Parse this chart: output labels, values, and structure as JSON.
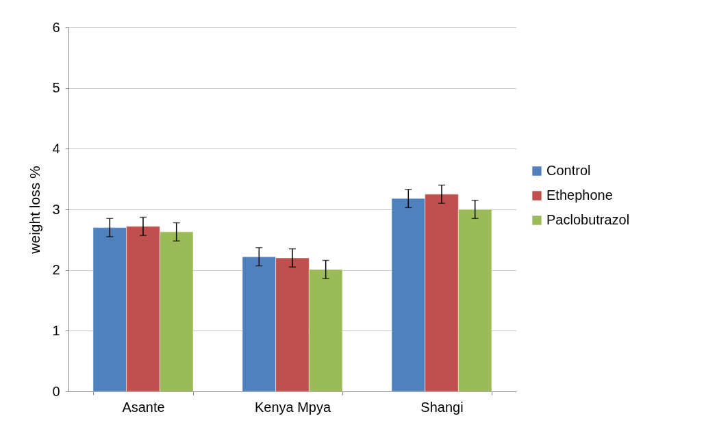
{
  "chart_data": {
    "type": "bar",
    "ylabel": "weight loss %",
    "categories": [
      "Asante",
      "Kenya Mpya",
      "Shangi"
    ],
    "series": [
      {
        "name": "Control",
        "color": "#4f81bd",
        "values": [
          2.7,
          2.22,
          3.18
        ],
        "errors": [
          0.15,
          0.15,
          0.15
        ]
      },
      {
        "name": "Ethephone",
        "color": "#c0504d",
        "values": [
          2.72,
          2.2,
          3.25
        ],
        "errors": [
          0.15,
          0.15,
          0.15
        ]
      },
      {
        "name": "Paclobutrazol",
        "color": "#9bbb59",
        "values": [
          2.63,
          2.01,
          3.0
        ],
        "errors": [
          0.15,
          0.15,
          0.15
        ]
      }
    ],
    "ylim": [
      0,
      6
    ],
    "yticks": [
      0,
      1,
      2,
      3,
      4,
      5,
      6
    ],
    "grid": "y",
    "legend": "right"
  }
}
